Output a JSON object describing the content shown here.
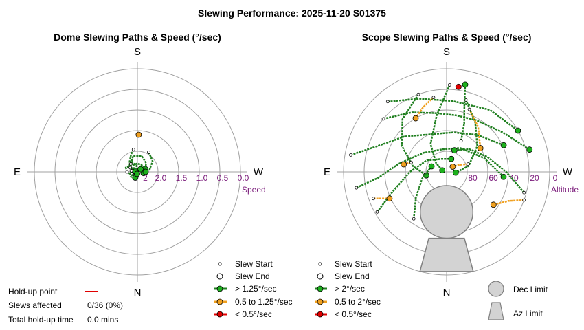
{
  "page_title": "Slewing Performance: 2025-11-20 S01375",
  "colors": {
    "fast": "#1db01d",
    "fast_line": "#1f7f1f",
    "medium": "#f0a020",
    "slow": "#e00000",
    "grid": "#a0a0a0",
    "tick": "#7a1a7a",
    "limit": "#d3d3d3"
  },
  "chart_data": [
    {
      "type": "polar",
      "title": "Dome Slewing Paths & Speed (°/sec)",
      "compass": {
        "top": "S",
        "bottom": "N",
        "left": "E",
        "right": "W"
      },
      "radial_label": "Speed",
      "radial_ticks": [
        "2",
        "2.0",
        "1.5",
        "1.0",
        "0.5",
        "0.0"
      ],
      "radial_range": [
        2.5,
        0.0
      ],
      "grid": true,
      "legend": {
        "start": "Slew Start",
        "end": "Slew End",
        "fast": "> 1.25°/sec",
        "medium": "0.5 to 1.25°/sec",
        "slow": "< 0.5°/sec"
      },
      "slews": [
        {
          "speed": "fast",
          "points": [
            [
              185,
              2.45
            ],
            [
              170,
              2.35
            ],
            [
              150,
              2.2
            ],
            [
              130,
              2.25
            ],
            [
              110,
              2.35
            ],
            [
              95,
              2.4
            ]
          ]
        },
        {
          "speed": "fast",
          "points": [
            [
              170,
              1.95
            ],
            [
              160,
              2.05
            ],
            [
              140,
              2.2
            ],
            [
              120,
              2.3
            ],
            [
              100,
              2.45
            ]
          ]
        },
        {
          "speed": "fast",
          "points": [
            [
              210,
              1.95
            ],
            [
              235,
              2.05
            ],
            [
              260,
              2.2
            ],
            [
              280,
              2.35
            ]
          ]
        },
        {
          "speed": "fast",
          "points": [
            [
              140,
              2.25
            ],
            [
              165,
              2.1
            ],
            [
              195,
              2.1
            ],
            [
              225,
              2.2
            ],
            [
              250,
              2.3
            ]
          ]
        },
        {
          "speed": "fast",
          "points": [
            [
              90,
              2.25
            ],
            [
              110,
              2.2
            ],
            [
              140,
              2.3
            ],
            [
              175,
              2.3
            ],
            [
              205,
              2.3
            ],
            [
              240,
              2.3
            ],
            [
              270,
              2.3
            ]
          ]
        },
        {
          "speed": "fast",
          "points": [
            [
              75,
              2.35
            ],
            [
              60,
              2.3
            ],
            [
              40,
              2.3
            ],
            [
              20,
              2.35
            ]
          ]
        },
        {
          "speed": "fast",
          "points": [
            [
              100,
              2.35
            ],
            [
              80,
              2.3
            ],
            [
              55,
              2.35
            ],
            [
              35,
              2.4
            ],
            [
              10,
              2.45
            ]
          ]
        },
        {
          "speed": "fast",
          "points": [
            [
              120,
              2.3
            ],
            [
              150,
              2.4
            ],
            [
              190,
              2.45
            ],
            [
              230,
              2.4
            ]
          ]
        },
        {
          "speed": "medium",
          "points": [
            [
              180,
              1.6
            ],
            [
              182,
              1.6
            ]
          ]
        }
      ]
    },
    {
      "type": "polar",
      "title": "Scope Slewing Paths & Speed (°/sec)",
      "compass": {
        "top": "S",
        "bottom": "N",
        "left": "E",
        "right": "W"
      },
      "radial_label": "Altitude",
      "radial_ticks": [
        "80",
        "60",
        "40",
        "20",
        "0"
      ],
      "radial_range": [
        90,
        0
      ],
      "grid": true,
      "legend": {
        "start": "Slew Start",
        "end": "Slew End",
        "fast": "> 2°/sec",
        "medium": "0.5 to 2°/sec",
        "slow": "< 0.5°/sec",
        "dec_limit": "Dec Limit",
        "az_limit": "Az Limit"
      },
      "slews": [
        {
          "speed": "fast",
          "points": [
            [
              182,
              14
            ],
            [
              170,
              40
            ],
            [
              150,
              62
            ],
            [
              130,
              78
            ],
            [
              110,
              86
            ]
          ]
        },
        {
          "speed": "fast",
          "points": [
            [
              160,
              18
            ],
            [
              140,
              30
            ],
            [
              120,
              45
            ],
            [
              100,
              60
            ],
            [
              80,
              72
            ]
          ]
        },
        {
          "speed": "fast",
          "points": [
            [
              195,
              25
            ],
            [
              210,
              40
            ],
            [
              230,
              55
            ],
            [
              255,
              70
            ],
            [
              275,
              82
            ]
          ]
        },
        {
          "speed": "fast",
          "points": [
            [
              130,
              18
            ],
            [
              150,
              30
            ],
            [
              170,
              38
            ],
            [
              190,
              40
            ],
            [
              210,
              38
            ],
            [
              235,
              30
            ],
            [
              255,
              15
            ]
          ]
        },
        {
          "speed": "fast",
          "points": [
            [
              100,
              5
            ],
            [
              110,
              25
            ],
            [
              130,
              42
            ],
            [
              160,
              55
            ],
            [
              190,
              55
            ],
            [
              220,
              48
            ],
            [
              245,
              35
            ]
          ]
        },
        {
          "speed": "fast",
          "points": [
            [
              80,
              10
            ],
            [
              85,
              30
            ],
            [
              100,
              48
            ],
            [
              130,
              64
            ],
            [
              170,
              70
            ],
            [
              210,
              66
            ],
            [
              250,
              55
            ],
            [
              275,
              40
            ]
          ]
        },
        {
          "speed": "fast",
          "points": [
            [
              60,
              20
            ],
            [
              70,
              40
            ],
            [
              90,
              58
            ],
            [
              120,
              70
            ],
            [
              160,
              78
            ],
            [
              200,
              78
            ]
          ]
        },
        {
          "speed": "fast",
          "points": [
            [
              140,
              10
            ],
            [
              160,
              22
            ],
            [
              185,
              28
            ],
            [
              215,
              24
            ],
            [
              240,
              18
            ]
          ]
        },
        {
          "speed": "fast",
          "points": [
            [
              35,
              40
            ],
            [
              50,
              55
            ],
            [
              75,
              68
            ],
            [
              110,
              76
            ]
          ]
        },
        {
          "speed": "fast",
          "points": [
            [
              285,
              20
            ],
            [
              270,
              38
            ],
            [
              250,
              52
            ],
            [
              225,
              62
            ],
            [
              200,
              70
            ]
          ]
        },
        {
          "speed": "fast",
          "points": [
            [
              205,
              60
            ],
            [
              200,
              45
            ],
            [
              195,
              30
            ],
            [
              192,
              12
            ]
          ]
        },
        {
          "speed": "medium",
          "points": [
            [
              170,
              24
            ],
            [
              160,
              30
            ],
            [
              150,
              36
            ]
          ]
        },
        {
          "speed": "medium",
          "points": [
            [
              200,
              32
            ],
            [
              215,
              42
            ],
            [
              235,
              54
            ]
          ]
        },
        {
          "speed": "medium",
          "points": [
            [
              250,
              70
            ],
            [
              240,
              78
            ],
            [
              230,
              83
            ]
          ]
        },
        {
          "speed": "medium",
          "points": [
            [
              290,
              18
            ],
            [
              295,
              30
            ],
            [
              305,
              40
            ]
          ]
        },
        {
          "speed": "medium",
          "points": [
            [
              105,
              58
            ],
            [
              100,
              52
            ]
          ]
        },
        {
          "speed": "medium",
          "points": [
            [
              70,
              22
            ],
            [
              65,
              35
            ]
          ]
        },
        {
          "speed": "slow",
          "points": [
            [
              187,
              15
            ],
            [
              188,
              15
            ]
          ]
        }
      ],
      "dec_limit": {
        "center_alt": 55,
        "center_az": 0,
        "radius_deg": 23
      },
      "az_limit": {
        "az_from": 345,
        "az_to": 15,
        "alt_from": 0,
        "alt_to": 30
      }
    }
  ],
  "holdup": {
    "point_label": "Hold-up point",
    "slews_label": "Slews affected",
    "slews_value": "0/36 (0%)",
    "time_label": "Total hold-up time",
    "time_value": "0.0 mins"
  }
}
